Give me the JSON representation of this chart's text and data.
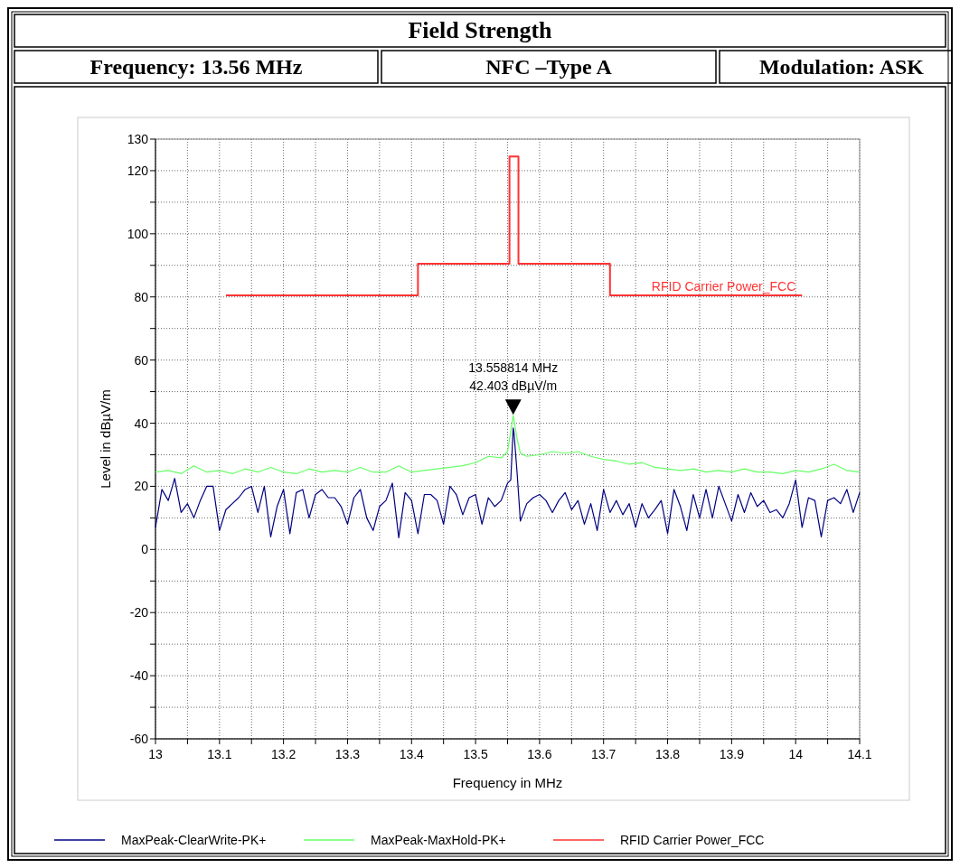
{
  "chart_data": {
    "type": "line",
    "title": "Field Strength",
    "xlabel": "Frequency in MHz",
    "ylabel": "Level in dBµV/m",
    "annotations": [
      "Frequency: 13.56 MHz",
      "NFC –Type A",
      "Modulation: ASK",
      {
        "text": "13.558814 MHz\n42.403 dBµV/m",
        "x": 13.558814,
        "y": 42.403
      },
      {
        "text": "RFID Carrier Power_FCC",
        "x": 13.775,
        "y": 82
      }
    ],
    "xlim": [
      13,
      14.1
    ],
    "ylim": [
      -60,
      130
    ],
    "xticks": [
      13,
      {
        "value": 13.05,
        "label": null
      },
      13.1,
      {
        "value": 13.15,
        "label": null
      },
      13.2,
      {
        "value": 13.25,
        "label": null
      },
      13.3,
      {
        "value": 13.35,
        "label": null
      },
      13.4,
      {
        "value": 13.45,
        "label": null
      },
      13.5,
      {
        "value": 13.55,
        "label": null
      },
      13.6,
      {
        "value": 13.65,
        "label": null
      },
      13.7,
      {
        "value": 13.75,
        "label": null
      },
      13.8,
      {
        "value": 13.85,
        "label": null
      },
      13.9,
      {
        "value": 13.95,
        "label": null
      },
      14,
      {
        "value": 14.05,
        "label": null
      },
      14.1
    ],
    "yticks": [
      -60,
      {
        "value": -50,
        "label": null
      },
      -40,
      {
        "value": -30,
        "label": null
      },
      -20,
      {
        "value": -10,
        "label": null
      },
      0,
      {
        "value": 10,
        "label": null
      },
      20,
      {
        "value": 30,
        "label": null
      },
      40,
      {
        "value": 50,
        "label": null
      },
      60,
      {
        "value": 70,
        "label": null
      },
      80,
      {
        "value": 90,
        "label": null
      },
      100,
      {
        "value": 110,
        "label": null
      },
      120,
      130
    ],
    "grid": true,
    "legend": "bottom",
    "marker": "none",
    "line_style": "solid",
    "series": [
      {
        "name": "MaxPeak-ClearWrite-PK+",
        "color": "#000080",
        "x": [
          13,
          13.01,
          13.02,
          13.03,
          13.04,
          13.05,
          13.06,
          13.07,
          13.08,
          13.09,
          13.1,
          13.11,
          13.12,
          13.13,
          13.14,
          13.15,
          13.16,
          13.17,
          13.18,
          13.19,
          13.2,
          13.21,
          13.22,
          13.23,
          13.24,
          13.25,
          13.26,
          13.27,
          13.28,
          13.29,
          13.3,
          13.31,
          13.32,
          13.33,
          13.34,
          13.35,
          13.36,
          13.37,
          13.38,
          13.39,
          13.4,
          13.41,
          13.42,
          13.43,
          13.44,
          13.45,
          13.46,
          13.47,
          13.48,
          13.49,
          13.5,
          13.51,
          13.52,
          13.53,
          13.54,
          13.55,
          13.555,
          13.5588,
          13.56,
          13.565,
          13.57,
          13.58,
          13.59,
          13.6,
          13.61,
          13.62,
          13.63,
          13.64,
          13.65,
          13.66,
          13.67,
          13.68,
          13.69,
          13.7,
          13.71,
          13.72,
          13.73,
          13.74,
          13.75,
          13.76,
          13.77,
          13.78,
          13.79,
          13.8,
          13.81,
          13.82,
          13.83,
          13.84,
          13.85,
          13.86,
          13.87,
          13.88,
          13.89,
          13.9,
          13.91,
          13.92,
          13.93,
          13.94,
          13.95,
          13.96,
          13.97,
          13.98,
          13.99,
          14,
          14.01,
          14.02,
          14.03,
          14.04,
          14.05,
          14.06,
          14.07,
          14.08,
          14.09,
          14.1
        ],
        "values": [
          7,
          19,
          15.5,
          22.5,
          11.7,
          14.5,
          10,
          15.5,
          20,
          20,
          6,
          12.6,
          14.5,
          16.4,
          19,
          20,
          11.7,
          20,
          4,
          13.6,
          19,
          5,
          18,
          19,
          10,
          17.4,
          19,
          16.4,
          16.4,
          13.6,
          8,
          16.4,
          19,
          10,
          6,
          13.6,
          15.5,
          21,
          3.7,
          18,
          15.5,
          5,
          17.4,
          17.4,
          15.5,
          8,
          20,
          17.4,
          11,
          16.4,
          17.4,
          8,
          16.4,
          13.6,
          15.5,
          21,
          22,
          38.5,
          37,
          24,
          9,
          14.5,
          16.4,
          17.4,
          15.5,
          11.7,
          15.5,
          18,
          12.6,
          15.5,
          8,
          14.5,
          6,
          19,
          11.7,
          15.5,
          11,
          14.5,
          7,
          14.5,
          10,
          12.6,
          15.5,
          5,
          19,
          13.6,
          6,
          17.4,
          10,
          19,
          10,
          20,
          14.5,
          9,
          17.4,
          11.7,
          18,
          13.6,
          15.5,
          11.7,
          12.6,
          10,
          14.5,
          22,
          7,
          16.4,
          15.5,
          4,
          15.5,
          16.4,
          14.5,
          19,
          11.7,
          18
        ]
      },
      {
        "name": "MaxPeak-MaxHold-PK+",
        "color": "#66ff66",
        "x": [
          13,
          13.02,
          13.04,
          13.06,
          13.08,
          13.1,
          13.12,
          13.14,
          13.16,
          13.18,
          13.2,
          13.22,
          13.24,
          13.26,
          13.28,
          13.3,
          13.32,
          13.34,
          13.36,
          13.38,
          13.4,
          13.42,
          13.44,
          13.46,
          13.48,
          13.5,
          13.52,
          13.54,
          13.55,
          13.5588,
          13.565,
          13.57,
          13.58,
          13.6,
          13.62,
          13.64,
          13.66,
          13.68,
          13.7,
          13.72,
          13.74,
          13.76,
          13.78,
          13.8,
          13.82,
          13.84,
          13.86,
          13.88,
          13.9,
          13.92,
          13.94,
          13.96,
          13.98,
          14,
          14.02,
          14.04,
          14.06,
          14.08,
          14.1
        ],
        "values": [
          24.5,
          25,
          24,
          26.5,
          24.5,
          25,
          24,
          25.5,
          24.5,
          26,
          24.5,
          24,
          25.5,
          24.5,
          25,
          24.5,
          26,
          24.5,
          24.5,
          26.5,
          24.5,
          25,
          25.5,
          26,
          26.5,
          27.5,
          29.5,
          29,
          31,
          42.4,
          35,
          30.5,
          29.5,
          30,
          31,
          30.5,
          31,
          29.5,
          28.5,
          28,
          27,
          27.5,
          26,
          25.5,
          25,
          25.5,
          24.5,
          25,
          24.5,
          25.5,
          24.5,
          24.5,
          24,
          25,
          24.5,
          25.5,
          27,
          25,
          24.5
        ]
      },
      {
        "name": "RFID Carrier Power_FCC",
        "color": "#ff3333",
        "type": "step",
        "x": [
          13.11,
          13.41,
          13.553,
          13.567,
          13.71,
          14.01
        ],
        "values": [
          80.5,
          90.5,
          124.5,
          90.5,
          80.5,
          80.5
        ]
      }
    ]
  }
}
